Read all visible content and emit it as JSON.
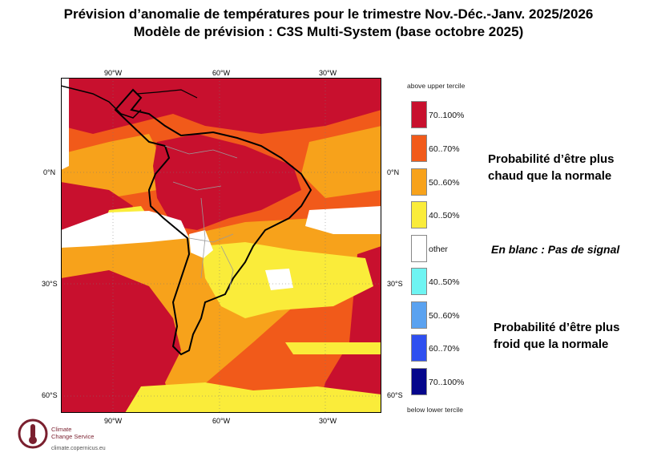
{
  "title": {
    "line1": "Prévision d’anomalie de températures pour le trimestre Nov.-Déc.-Janv. 2025/2026",
    "line2": "Modèle de prévision : C3S Multi-System (base octobre 2025)"
  },
  "map": {
    "longitude_ticks": [
      "90°W",
      "60°W",
      "30°W"
    ],
    "latitude_ticks": [
      "0°N",
      "30°S",
      "60°S"
    ],
    "palette": {
      "p70_100_warm": "#c8102e",
      "p60_70_warm": "#f15a1a",
      "p50_60_warm": "#f7a21b",
      "p40_50_warm": "#faec3a",
      "other": "#ffffff"
    }
  },
  "legend": {
    "top_caption": "above upper tercile",
    "bottom_caption": "below lower tercile",
    "items": [
      {
        "label": "70..100%",
        "color": "#c8102e"
      },
      {
        "label": "60..70%",
        "color": "#f15a1a"
      },
      {
        "label": "50..60%",
        "color": "#f7a21b"
      },
      {
        "label": "40..50%",
        "color": "#faec3a"
      },
      {
        "label": "other",
        "color": "#ffffff"
      },
      {
        "label": "40..50%",
        "color": "#6ef4f2"
      },
      {
        "label": "50..60%",
        "color": "#5aa2f0"
      },
      {
        "label": "60..70%",
        "color": "#2e4ff0"
      },
      {
        "label": "70..100%",
        "color": "#06078c"
      }
    ]
  },
  "notes": {
    "warm_line1": "Probabilité d’être plus",
    "warm_line2": "chaud que la normale",
    "no_signal": "En blanc : Pas de signal",
    "cold_line1": "Probabilité d’être plus",
    "cold_line2": "froid que la normale"
  },
  "logo": {
    "name_line1": "Climate",
    "name_line2": "Change Service",
    "url": "climate.copernicus.eu"
  }
}
